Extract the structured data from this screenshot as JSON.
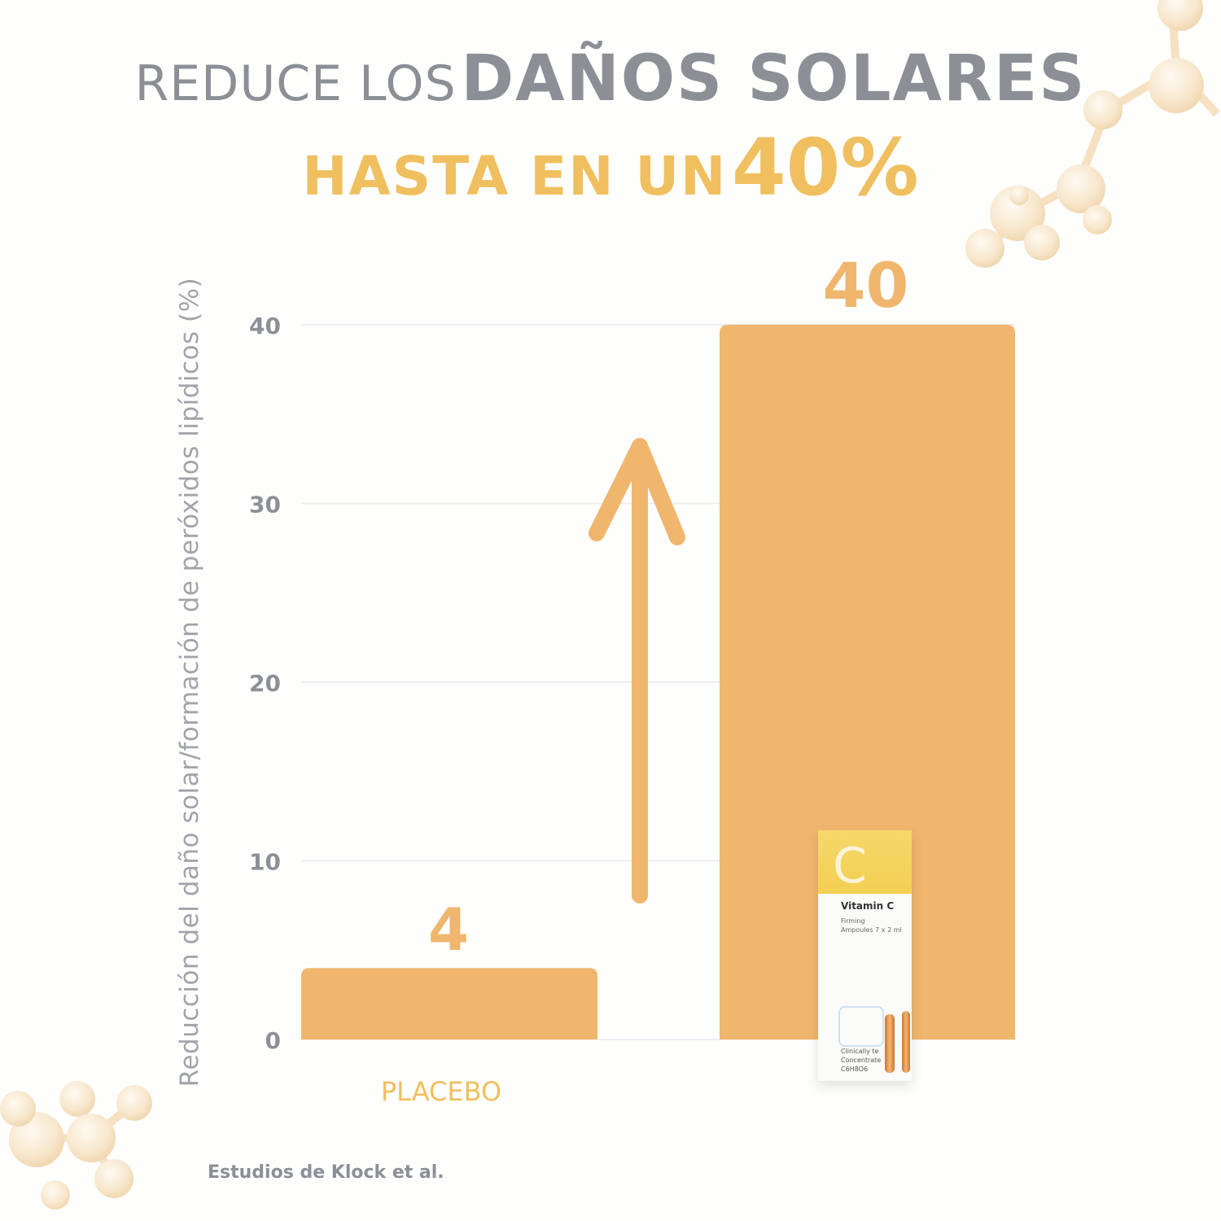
{
  "headline": {
    "line1_prefix": "REDUCE LOS",
    "line1_emphasis": "DAÑOS SOLARES",
    "line2_prefix": "HASTA EN UN",
    "line2_emphasis": "40%"
  },
  "colors": {
    "gold": "#f0bf5f",
    "bar": "#f0b66e",
    "gray_text": "#8c9096",
    "gridline": "#eceef0",
    "background": "#fefefd"
  },
  "chart_data": {
    "type": "bar",
    "categories": [
      "PLACEBO",
      ""
    ],
    "values": [
      4,
      40
    ],
    "data_labels": [
      "4",
      "40"
    ],
    "ylabel": "Reducción del daño solar/formación de peróxidos lipídicos (%)",
    "xlabel": "",
    "ylim": [
      0,
      40
    ],
    "yticks": [
      0,
      10,
      20,
      30,
      40
    ],
    "grid": true,
    "annotations": [
      "upward-arrow"
    ]
  },
  "product": {
    "name": "Vitamin C",
    "subtitle_line1": "Firming",
    "subtitle_line2": "Ampoules 7 x 2 ml",
    "big_letter": "C",
    "foot_line1": "Clinically te",
    "foot_line2": "Concentrate",
    "foot_line3": "C6H8O6"
  },
  "source": "Estudios de Klock et al.",
  "decorations": [
    "molecule-top-right",
    "molecule-bottom-left"
  ]
}
